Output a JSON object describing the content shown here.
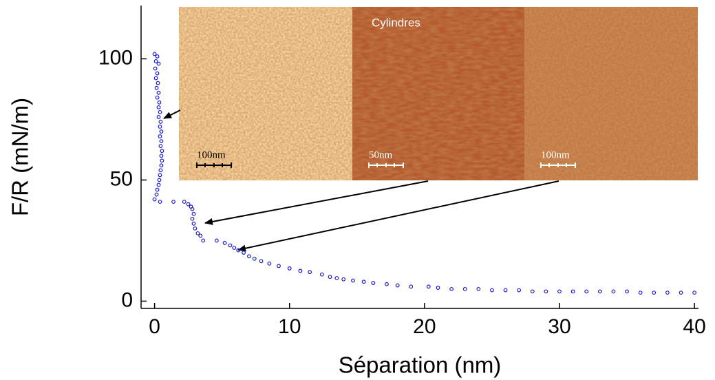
{
  "chart_data": {
    "type": "scatter",
    "xlabel": "Séparation (nm)",
    "ylabel": "F/R (mN/m)",
    "xlim": [
      -1,
      40.3
    ],
    "ylim": [
      -3,
      122
    ],
    "xticks": [
      0,
      10,
      20,
      30,
      40
    ],
    "yticks": [
      0,
      50,
      100
    ],
    "color": "#1a1acc",
    "grid": false,
    "x": [
      0,
      0.2,
      0.1,
      0.3,
      0.05,
      0.2,
      0.1,
      0.25,
      0.15,
      0.3,
      0.2,
      0.35,
      0.3,
      0.4,
      0.3,
      0.45,
      0.4,
      0.5,
      0.4,
      0.5,
      0.45,
      0.55,
      0.5,
      0.55,
      0.5,
      0.45,
      0.4,
      0.35,
      0.3,
      0.2,
      0.15,
      0,
      0.4,
      1.4,
      2.2,
      2.5,
      2.7,
      2.8,
      2.9,
      2.8,
      2.9,
      3.0,
      3.2,
      3.4,
      3.6,
      4.6,
      5.2,
      5.6,
      5.9,
      6.2,
      6.6,
      7.0,
      7.4,
      7.9,
      8.5,
      9.2,
      10,
      10.8,
      11.5,
      12.4,
      13,
      13.5,
      14,
      14.7,
      15.5,
      16.2,
      17.2,
      18,
      19,
      20.3,
      21,
      22,
      23,
      24,
      25,
      26,
      27,
      28,
      29,
      30,
      31,
      32,
      33,
      34,
      35,
      36,
      37,
      38,
      39,
      40
    ],
    "values": [
      102,
      101,
      99,
      98,
      96,
      94,
      92,
      90,
      88,
      86,
      84,
      82,
      80,
      78,
      76,
      74,
      72,
      70,
      68,
      66,
      64,
      62,
      60,
      58,
      56,
      54,
      52,
      50,
      48,
      46,
      44,
      42,
      41,
      41,
      41,
      40,
      39,
      38,
      36,
      34,
      32,
      30,
      28,
      27,
      25,
      25,
      24,
      23,
      22,
      21,
      20,
      18.5,
      17.5,
      16.5,
      15.5,
      14.5,
      13.5,
      12.5,
      12,
      11,
      10,
      9.5,
      9,
      8.5,
      8,
      7.5,
      7,
      6.5,
      6,
      6,
      5.5,
      5,
      5,
      5,
      4.5,
      4.5,
      4.5,
      4,
      4,
      4,
      4,
      4,
      4,
      4,
      4,
      3.5,
      3.5,
      3.5,
      3.5,
      3.5
    ],
    "annotations": [
      "Cylindres",
      "100nm",
      "50nm",
      "100nm"
    ]
  }
}
